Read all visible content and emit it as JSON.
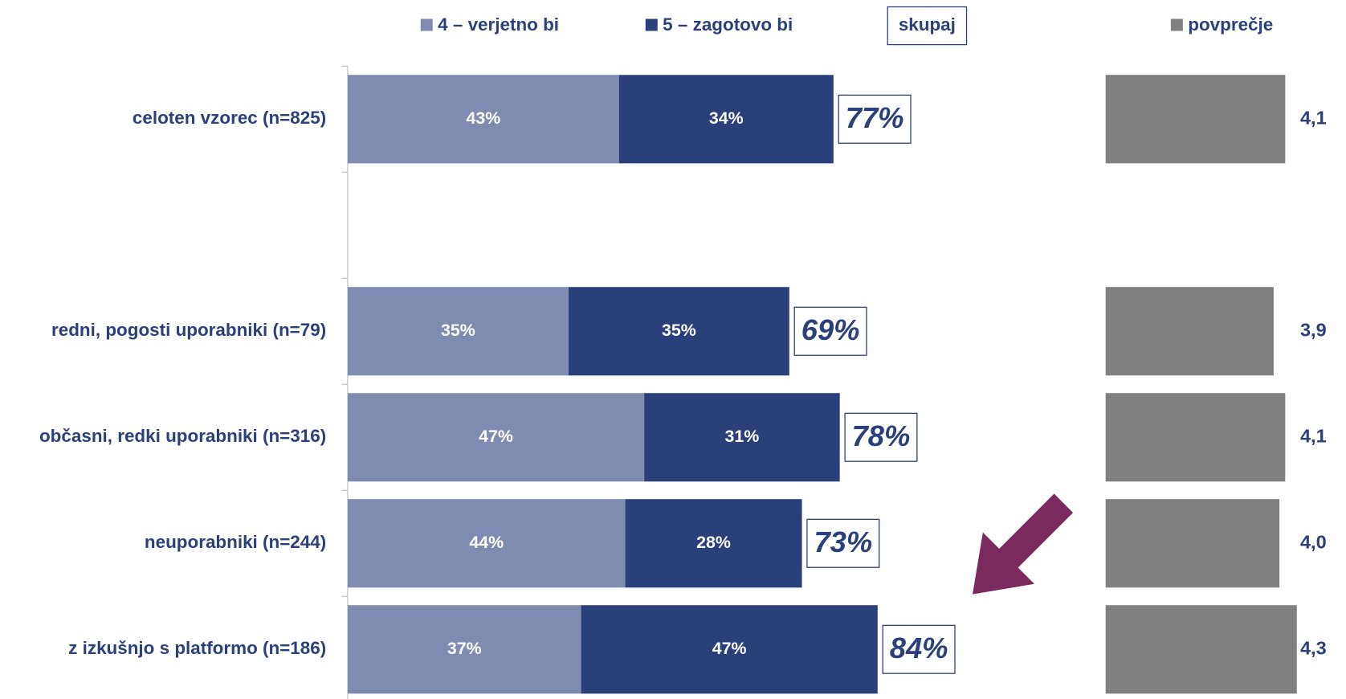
{
  "chart_data": [
    {
      "type": "bar",
      "orientation": "horizontal",
      "stacked": true,
      "categories": [
        "celoten vzorec (n=825)",
        null,
        "redni, pogosti uporabniki (n=79)",
        "občasni, redki uporabniki (n=316)",
        "neuporabniki (n=244)",
        "z izkušnjo s platformo (n=186)"
      ],
      "series": [
        {
          "name": "4 – verjetno bi",
          "color": "#7f8bb0",
          "values": [
            43,
            null,
            35,
            47,
            44,
            37
          ],
          "value_labels": [
            "43%",
            null,
            "35%",
            "47%",
            "44%",
            "37%"
          ]
        },
        {
          "name": "5 – zagotovo bi",
          "color": "#2b3f7a",
          "values": [
            34,
            null,
            35,
            31,
            28,
            47
          ],
          "value_labels": [
            "34%",
            null,
            "35%",
            "31%",
            "28%",
            "47%"
          ]
        }
      ],
      "totals": {
        "name": "skupaj",
        "values": [
          77,
          null,
          69,
          78,
          73,
          84
        ],
        "value_labels": [
          "77%",
          null,
          "69%",
          "78%",
          "73%",
          "84%"
        ]
      },
      "xlim": [
        0,
        100
      ]
    },
    {
      "type": "bar",
      "orientation": "horizontal",
      "series": [
        {
          "name": "povprečje",
          "color": "#808080",
          "values": [
            4.1,
            null,
            3.9,
            4.1,
            4.0,
            4.3
          ],
          "value_labels": [
            "4,1",
            null,
            "3,9",
            "4,1",
            "4,0",
            "4,3"
          ]
        }
      ],
      "xlim": [
        1,
        5
      ]
    }
  ]
}
